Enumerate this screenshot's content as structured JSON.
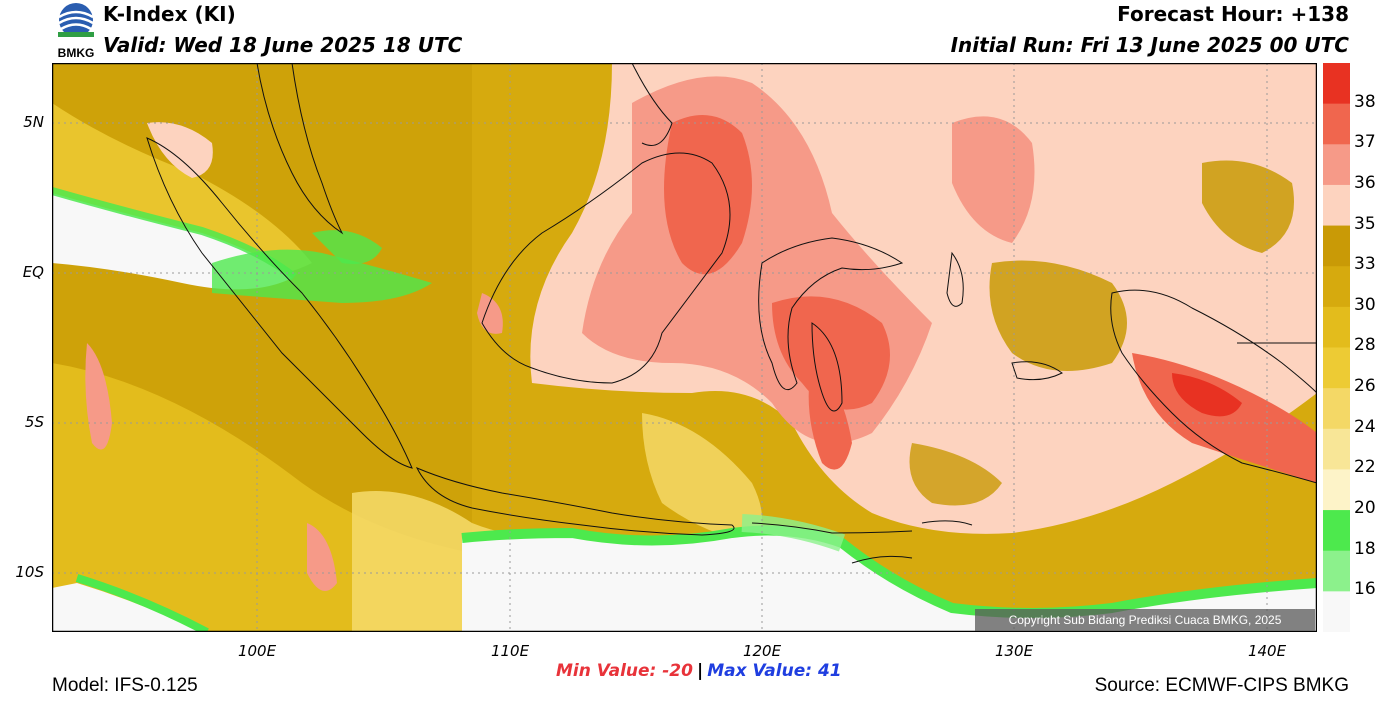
{
  "header": {
    "logo_text": "BMKG",
    "title": "K-Index (KI)",
    "valid": "Valid: Wed 18 June 2025 18 UTC",
    "forecast_hour": "Forecast Hour: +138",
    "initial_run": "Initial Run: Fri 13 June 2025 00 UTC"
  },
  "axes": {
    "lat_labels": [
      "5N",
      "EQ",
      "5S",
      "10S"
    ],
    "lon_labels": [
      "100E",
      "110E",
      "120E",
      "130E",
      "140E"
    ]
  },
  "colorbar": {
    "labels": [
      "38",
      "37",
      "36",
      "35",
      "33",
      "30",
      "28",
      "26",
      "24",
      "22",
      "20",
      "18",
      "16"
    ],
    "colors": [
      "#e83222",
      "#f0664e",
      "#f69a88",
      "#fdd3bf",
      "#c99a06",
      "#d6aa0e",
      "#e3bc1c",
      "#edcb34",
      "#f4d866",
      "#f8e697",
      "#fdf3c8",
      "#4de94d",
      "#8cf18c"
    ]
  },
  "copyright": "Copyright Sub Bidang Prediksi Cuaca BMKG, 2025",
  "footer": {
    "min_value": "Min Value: -20",
    "separator": "|",
    "max_value": "Max Value:  41",
    "model": "Model: IFS-0.125",
    "source": "Source: ECMWF-CIPS BMKG"
  }
}
